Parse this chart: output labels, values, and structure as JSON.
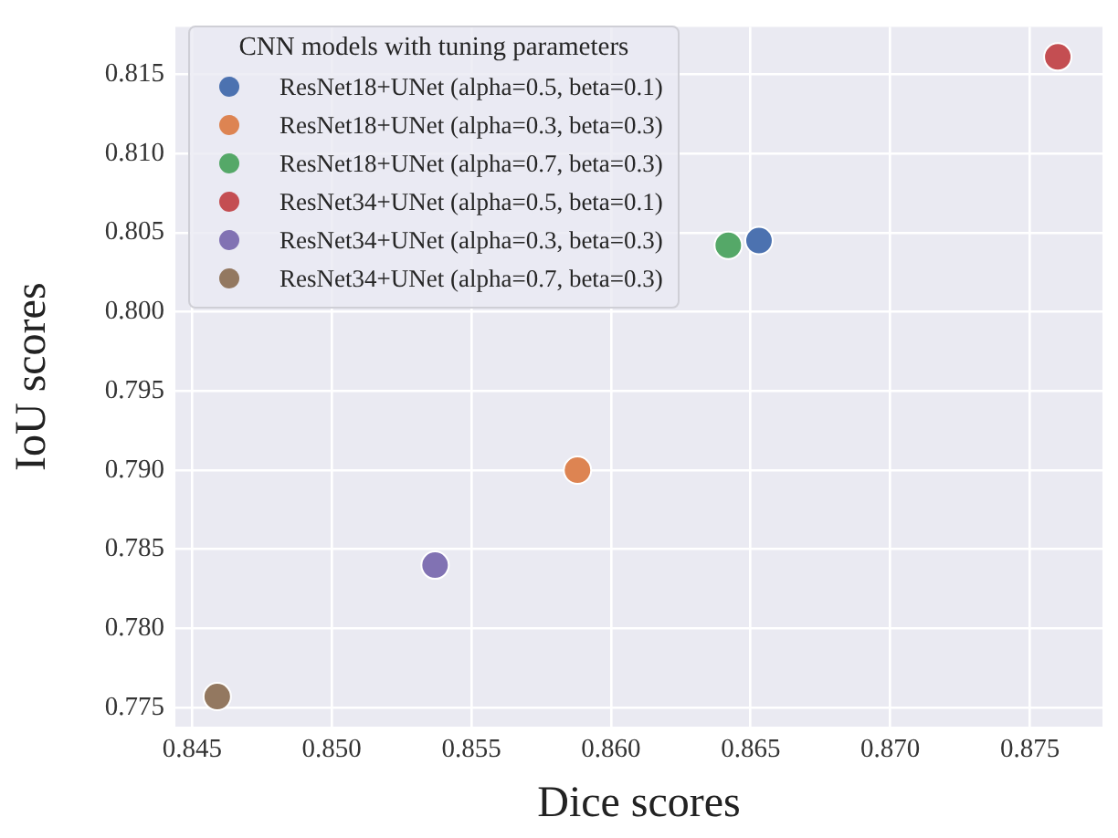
{
  "chart_data": {
    "type": "scatter",
    "xlabel": "Dice scores",
    "ylabel": "IoU scores",
    "legend_title": "CNN models with tuning parameters",
    "xlim": [
      0.8444,
      0.8776
    ],
    "xticks": [
      {
        "value": 0.845,
        "label": "0.845"
      },
      {
        "value": 0.85,
        "label": "0.850"
      },
      {
        "value": 0.855,
        "label": "0.855"
      },
      {
        "value": 0.86,
        "label": "0.860"
      },
      {
        "value": 0.865,
        "label": "0.865"
      },
      {
        "value": 0.87,
        "label": "0.870"
      },
      {
        "value": 0.875,
        "label": "0.875"
      }
    ],
    "ylim": [
      0.7738,
      0.818
    ],
    "yticks": [
      {
        "value": 0.775,
        "label": "0.775"
      },
      {
        "value": 0.78,
        "label": "0.780"
      },
      {
        "value": 0.785,
        "label": "0.785"
      },
      {
        "value": 0.79,
        "label": "0.790"
      },
      {
        "value": 0.795,
        "label": "0.795"
      },
      {
        "value": 0.8,
        "label": "0.800"
      },
      {
        "value": 0.805,
        "label": "0.805"
      },
      {
        "value": 0.81,
        "label": "0.810"
      },
      {
        "value": 0.815,
        "label": "0.815"
      }
    ],
    "grid": true,
    "legend": "top left",
    "marker": "circle",
    "series": [
      {
        "name": "ResNet18+UNet (alpha=0.5, beta=0.1)",
        "color": "#4c72b0",
        "x": [
          0.8653
        ],
        "values": [
          0.8045
        ]
      },
      {
        "name": "ResNet18+UNet (alpha=0.3, beta=0.3)",
        "color": "#dd8452",
        "x": [
          0.8588
        ],
        "values": [
          0.79
        ]
      },
      {
        "name": "ResNet18+UNet (alpha=0.7, beta=0.3)",
        "color": "#55a868",
        "x": [
          0.8642
        ],
        "values": [
          0.8042
        ]
      },
      {
        "name": "ResNet34+UNet (alpha=0.5, beta=0.1)",
        "color": "#c44e52",
        "x": [
          0.876
        ],
        "values": [
          0.8161
        ]
      },
      {
        "name": "ResNet34+UNet (alpha=0.3, beta=0.3)",
        "color": "#8172b3",
        "x": [
          0.8537
        ],
        "values": [
          0.784
        ]
      },
      {
        "name": "ResNet34+UNet (alpha=0.7, beta=0.3)",
        "color": "#937860",
        "x": [
          0.8459
        ],
        "values": [
          0.7757
        ]
      }
    ]
  }
}
